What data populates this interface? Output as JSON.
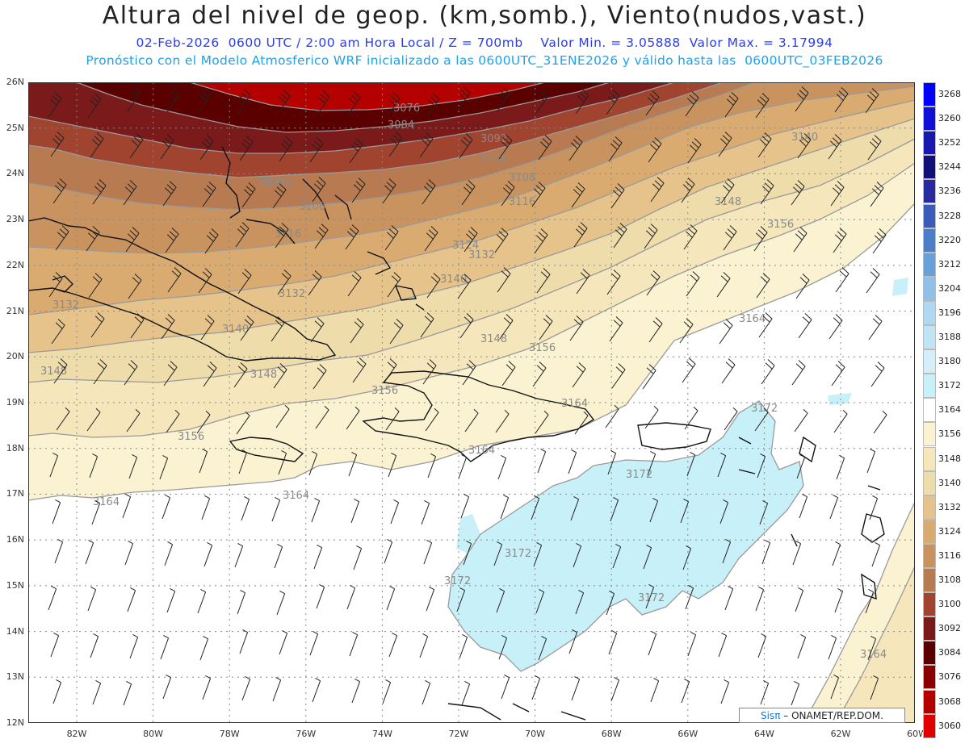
{
  "title": "Altura del nivel de geop. (km,somb.), Viento(nudos,vast.)",
  "subtitle1": "02-Feb-2026  0600 UTC / 2:00 am Hora Local / Z = 700mb    Valor Min. = 3.05888  Valor Max. = 3.17994",
  "subtitle2": "Pronóstico con el Modelo Atmosferico WRF inicializado a las 0600UTC_31ENE2026 y válido hasta las  0600UTC_03FEB2026",
  "lat_labels": [
    "26N",
    "25N",
    "24N",
    "23N",
    "22N",
    "21N",
    "20N",
    "19N",
    "18N",
    "17N",
    "16N",
    "15N",
    "14N",
    "13N",
    "12N"
  ],
  "lon_labels": [
    "82W",
    "80W",
    "78W",
    "76W",
    "74W",
    "72W",
    "70W",
    "68W",
    "66W",
    "64W",
    "62W",
    "60W"
  ],
  "colorbar": {
    "levels": [
      3268,
      3260,
      3252,
      3244,
      3236,
      3228,
      3220,
      3212,
      3204,
      3196,
      3188,
      3180,
      3172,
      3164,
      3156,
      3148,
      3140,
      3132,
      3124,
      3116,
      3108,
      3100,
      3092,
      3084,
      3076,
      3068,
      3060
    ],
    "colors": [
      "#0000ff",
      "#1010d8",
      "#1818b0",
      "#101078",
      "#2a2aa0",
      "#3a5cb8",
      "#4a7fc8",
      "#6aa0d8",
      "#90c0e8",
      "#b0d8f0",
      "#c0e4f4",
      "#d6eef8",
      "#c8f0f8",
      "#ffffff",
      "#faf2d0",
      "#f5e6bc",
      "#efdcab",
      "#e6c38a",
      "#d9ab70",
      "#c8935e",
      "#b87a50",
      "#a04430",
      "#7a1a1a",
      "#5a0000",
      "#8a0000",
      "#b50000",
      "#e00000"
    ]
  },
  "contour_labels": [
    "3076",
    "3084",
    "3092",
    "3100",
    "3108",
    "3116",
    "3124",
    "3132",
    "3140",
    "3148",
    "3156",
    "3164",
    "3172"
  ],
  "credit": {
    "brand": "Sisπ",
    "rest": " – ONAMET/REP.DOM."
  }
}
